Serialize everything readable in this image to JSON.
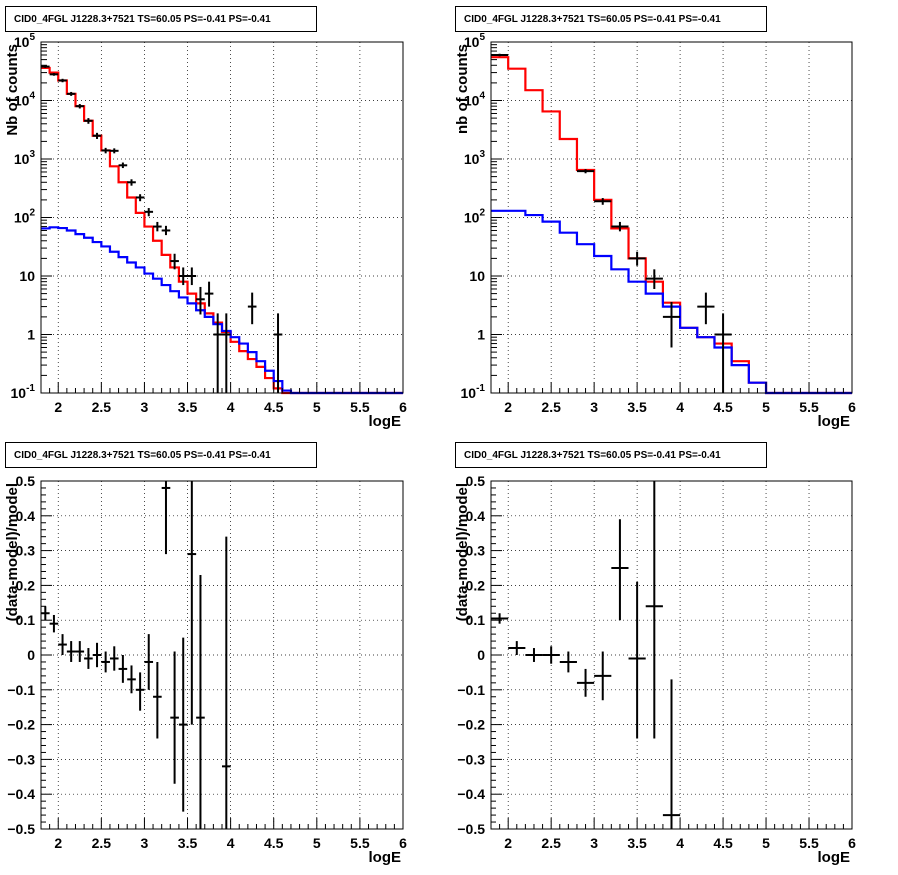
{
  "chart_data": [
    {
      "type": "line",
      "title": "CID0_4FGL J1228.3+7521 TS=60.05 PS=-0.41 PS=-0.41",
      "xlabel": "logE",
      "ylabel": "Nb of counts",
      "xlim": [
        1.8,
        6
      ],
      "ylim": [
        0.1,
        100000
      ],
      "yscale": "log",
      "grid": true,
      "xticks": [
        "2",
        "2.5",
        "3",
        "3.5",
        "4",
        "4.5",
        "5",
        "5.5",
        "6"
      ],
      "yticks": [
        "10^-1",
        "1",
        "10",
        "10^2",
        "10^3",
        "10^4",
        "10^5"
      ],
      "series": [
        {
          "color": "#ff0000",
          "style": "step",
          "bin_edges": [
            1.8,
            1.9,
            2.0,
            2.1,
            2.2,
            2.3,
            2.4,
            2.5,
            2.6,
            2.7,
            2.8,
            2.9,
            3.0,
            3.1,
            3.2,
            3.3,
            3.4,
            3.5,
            3.6,
            3.7,
            3.8,
            3.9,
            4.0,
            4.1,
            4.2,
            4.3,
            4.4,
            4.5,
            4.6,
            4.7,
            4.8,
            4.9,
            5.0,
            5.1,
            5.2,
            5.3,
            5.4,
            5.5,
            5.6,
            5.7,
            5.8,
            5.9,
            6.0
          ],
          "values": [
            36000,
            30000,
            22000,
            13000,
            8000,
            4500,
            2500,
            1400,
            750,
            400,
            220,
            120,
            70,
            40,
            23,
            14,
            8,
            5,
            3.4,
            2.3,
            1.6,
            1.1,
            0.75,
            0.52,
            0.38,
            0.28,
            0.18,
            0.12,
            0.1,
            0.1,
            0.1,
            0.1,
            0.1,
            0.1,
            0.1,
            0.1,
            0.1,
            0.1,
            0.1,
            0.1,
            0.1,
            0.1
          ]
        },
        {
          "color": "#0000ff",
          "style": "step",
          "bin_edges": [
            1.8,
            1.9,
            2.0,
            2.1,
            2.2,
            2.3,
            2.4,
            2.5,
            2.6,
            2.7,
            2.8,
            2.9,
            3.0,
            3.1,
            3.2,
            3.3,
            3.4,
            3.5,
            3.6,
            3.7,
            3.8,
            3.9,
            4.0,
            4.1,
            4.2,
            4.3,
            4.4,
            4.5,
            4.6,
            4.7,
            4.8,
            4.9,
            5.0,
            5.1,
            5.2,
            5.3,
            5.4,
            5.5,
            5.6,
            5.7,
            5.8,
            5.9,
            6.0
          ],
          "values": [
            65,
            68,
            66,
            60,
            52,
            45,
            38,
            32,
            26,
            21,
            17,
            14,
            11,
            9,
            7,
            5.5,
            4.3,
            3.4,
            2.6,
            2.0,
            1.5,
            1.15,
            0.9,
            0.7,
            0.5,
            0.35,
            0.24,
            0.16,
            0.11,
            0.1,
            0.1,
            0.1,
            0.1,
            0.1,
            0.1,
            0.1,
            0.1,
            0.1,
            0.1,
            0.1,
            0.1,
            0.1
          ]
        },
        {
          "color": "#000000",
          "style": "errorbar",
          "points": [
            {
              "x": 1.85,
              "y": 38000,
              "xerr": 0.05,
              "ylo": 36000,
              "yhi": 40000
            },
            {
              "x": 1.95,
              "y": 28000,
              "xerr": 0.05,
              "ylo": 26500,
              "yhi": 29500
            },
            {
              "x": 2.05,
              "y": 22000,
              "xerr": 0.05,
              "ylo": 20500,
              "yhi": 23500
            },
            {
              "x": 2.15,
              "y": 13000,
              "xerr": 0.05,
              "ylo": 12000,
              "yhi": 14000
            },
            {
              "x": 2.25,
              "y": 8000,
              "xerr": 0.05,
              "ylo": 7300,
              "yhi": 8700
            },
            {
              "x": 2.35,
              "y": 4500,
              "xerr": 0.05,
              "ylo": 4000,
              "yhi": 5000
            },
            {
              "x": 2.45,
              "y": 2500,
              "xerr": 0.05,
              "ylo": 2200,
              "yhi": 2800
            },
            {
              "x": 2.55,
              "y": 1400,
              "xerr": 0.05,
              "ylo": 1250,
              "yhi": 1550
            },
            {
              "x": 2.65,
              "y": 1380,
              "xerr": 0.05,
              "ylo": 1250,
              "yhi": 1520
            },
            {
              "x": 2.75,
              "y": 780,
              "xerr": 0.05,
              "ylo": 700,
              "yhi": 870
            },
            {
              "x": 2.85,
              "y": 400,
              "xerr": 0.05,
              "ylo": 350,
              "yhi": 450
            },
            {
              "x": 2.95,
              "y": 220,
              "xerr": 0.05,
              "ylo": 190,
              "yhi": 250
            },
            {
              "x": 3.05,
              "y": 125,
              "xerr": 0.05,
              "ylo": 105,
              "yhi": 145
            },
            {
              "x": 3.15,
              "y": 70,
              "xerr": 0.05,
              "ylo": 58,
              "yhi": 84
            },
            {
              "x": 3.25,
              "y": 60,
              "xerr": 0.05,
              "ylo": 50,
              "yhi": 72
            },
            {
              "x": 3.35,
              "y": 18,
              "xerr": 0.05,
              "ylo": 13,
              "yhi": 24
            },
            {
              "x": 3.45,
              "y": 10,
              "xerr": 0.05,
              "ylo": 7,
              "yhi": 14
            },
            {
              "x": 3.55,
              "y": 10,
              "xerr": 0.05,
              "ylo": 7,
              "yhi": 14
            },
            {
              "x": 3.65,
              "y": 4,
              "xerr": 0.05,
              "ylo": 2.2,
              "yhi": 6.5
            },
            {
              "x": 3.75,
              "y": 5,
              "xerr": 0.05,
              "ylo": 3,
              "yhi": 8
            },
            {
              "x": 3.85,
              "y": 1,
              "xerr": 0.05,
              "ylo": 0.1,
              "yhi": 2.3
            },
            {
              "x": 3.95,
              "y": 1,
              "xerr": 0.05,
              "ylo": 0.1,
              "yhi": 2.3
            },
            {
              "x": 4.25,
              "y": 3,
              "xerr": 0.05,
              "ylo": 1.5,
              "yhi": 5.2
            },
            {
              "x": 4.55,
              "y": 1,
              "xerr": 0.05,
              "ylo": 0.1,
              "yhi": 2.3
            }
          ]
        }
      ]
    },
    {
      "type": "line",
      "title": "CID0_4FGL J1228.3+7521 TS=60.05 PS=-0.41 PS=-0.41",
      "xlabel": "logE",
      "ylabel": "nb of counts",
      "xlim": [
        1.8,
        6
      ],
      "ylim": [
        0.1,
        100000
      ],
      "yscale": "log",
      "grid": true,
      "xticks": [
        "2",
        "2.5",
        "3",
        "3.5",
        "4",
        "4.5",
        "5",
        "5.5",
        "6"
      ],
      "yticks": [
        "10^-1",
        "1",
        "10",
        "10^2",
        "10^3",
        "10^4",
        "10^5"
      ],
      "series": [
        {
          "color": "#ff0000",
          "style": "step",
          "bin_edges": [
            1.8,
            2.0,
            2.2,
            2.4,
            2.6,
            2.8,
            3.0,
            3.2,
            3.4,
            3.6,
            3.8,
            4.0,
            4.2,
            4.4,
            4.6,
            4.8,
            5.0,
            5.2,
            5.4,
            5.6,
            5.8,
            6.0
          ],
          "values": [
            55000,
            35000,
            15000,
            6500,
            2200,
            650,
            200,
            65,
            20,
            8,
            3.5,
            1.3,
            0.9,
            0.7,
            0.35,
            0.15,
            0.1,
            0.1,
            0.1,
            0.1,
            0.1
          ]
        },
        {
          "color": "#0000ff",
          "style": "step",
          "bin_edges": [
            1.8,
            2.0,
            2.2,
            2.4,
            2.6,
            2.8,
            3.0,
            3.2,
            3.4,
            3.6,
            3.8,
            4.0,
            4.2,
            4.4,
            4.6,
            4.8,
            5.0,
            5.2,
            5.4,
            5.6,
            5.8,
            6.0
          ],
          "values": [
            130,
            130,
            110,
            85,
            55,
            35,
            22,
            13,
            8,
            5,
            3,
            1.3,
            0.9,
            0.6,
            0.3,
            0.15,
            0.1,
            0.1,
            0.1,
            0.1,
            0.1
          ]
        },
        {
          "color": "#000000",
          "style": "errorbar",
          "points": [
            {
              "x": 1.9,
              "y": 60000,
              "xerr": 0.1,
              "ylo": 57000,
              "yhi": 63000
            },
            {
              "x": 2.9,
              "y": 620,
              "xerr": 0.1,
              "ylo": 570,
              "yhi": 670
            },
            {
              "x": 3.1,
              "y": 190,
              "xerr": 0.1,
              "ylo": 165,
              "yhi": 215
            },
            {
              "x": 3.3,
              "y": 70,
              "xerr": 0.1,
              "ylo": 58,
              "yhi": 84
            },
            {
              "x": 3.5,
              "y": 20,
              "xerr": 0.1,
              "ylo": 15,
              "yhi": 26
            },
            {
              "x": 3.7,
              "y": 9,
              "xerr": 0.1,
              "ylo": 6,
              "yhi": 13
            },
            {
              "x": 3.9,
              "y": 2,
              "xerr": 0.1,
              "ylo": 0.6,
              "yhi": 3.6
            },
            {
              "x": 4.3,
              "y": 3,
              "xerr": 0.1,
              "ylo": 1.5,
              "yhi": 5.2
            },
            {
              "x": 4.5,
              "y": 1,
              "xerr": 0.1,
              "ylo": 0.1,
              "yhi": 2.3
            }
          ]
        }
      ]
    },
    {
      "type": "scatter",
      "title": "CID0_4FGL J1228.3+7521 TS=60.05 PS=-0.41 PS=-0.41",
      "xlabel": "logE",
      "ylabel": "(data-model)/model",
      "xlim": [
        1.8,
        6
      ],
      "ylim": [
        -0.5,
        0.5
      ],
      "grid": true,
      "xticks": [
        "2",
        "2.5",
        "3",
        "3.5",
        "4",
        "4.5",
        "5",
        "5.5",
        "6"
      ],
      "yticks": [
        "-0.5",
        "-0.4",
        "-0.3",
        "-0.2",
        "-0.1",
        "0",
        "0.1",
        "0.2",
        "0.3",
        "0.4",
        "0.5"
      ],
      "series": [
        {
          "color": "#000000",
          "style": "errorbar",
          "points": [
            {
              "x": 1.85,
              "y": 0.12,
              "xerr": 0.05,
              "ylo": 0.1,
              "yhi": 0.14
            },
            {
              "x": 1.95,
              "y": 0.09,
              "xerr": 0.05,
              "ylo": 0.065,
              "yhi": 0.115
            },
            {
              "x": 2.05,
              "y": 0.03,
              "xerr": 0.05,
              "ylo": 0.0,
              "yhi": 0.06
            },
            {
              "x": 2.15,
              "y": 0.01,
              "xerr": 0.05,
              "ylo": -0.02,
              "yhi": 0.04
            },
            {
              "x": 2.25,
              "y": 0.01,
              "xerr": 0.05,
              "ylo": -0.02,
              "yhi": 0.04
            },
            {
              "x": 2.35,
              "y": -0.01,
              "xerr": 0.05,
              "ylo": -0.04,
              "yhi": 0.02
            },
            {
              "x": 2.45,
              "y": 0.0,
              "xerr": 0.05,
              "ylo": -0.035,
              "yhi": 0.035
            },
            {
              "x": 2.55,
              "y": -0.02,
              "xerr": 0.05,
              "ylo": -0.05,
              "yhi": 0.01
            },
            {
              "x": 2.65,
              "y": -0.01,
              "xerr": 0.05,
              "ylo": -0.045,
              "yhi": 0.025
            },
            {
              "x": 2.75,
              "y": -0.04,
              "xerr": 0.05,
              "ylo": -0.08,
              "yhi": 0.0
            },
            {
              "x": 2.85,
              "y": -0.07,
              "xerr": 0.05,
              "ylo": -0.11,
              "yhi": -0.03
            },
            {
              "x": 2.95,
              "y": -0.1,
              "xerr": 0.05,
              "ylo": -0.16,
              "yhi": -0.05
            },
            {
              "x": 3.05,
              "y": -0.02,
              "xerr": 0.05,
              "ylo": -0.1,
              "yhi": 0.06
            },
            {
              "x": 3.15,
              "y": -0.12,
              "xerr": 0.05,
              "ylo": -0.24,
              "yhi": -0.02
            },
            {
              "x": 3.25,
              "y": 0.48,
              "xerr": 0.05,
              "ylo": 0.29,
              "yhi": 0.5
            },
            {
              "x": 3.35,
              "y": -0.18,
              "xerr": 0.05,
              "ylo": -0.37,
              "yhi": 0.01
            },
            {
              "x": 3.45,
              "y": -0.2,
              "xerr": 0.05,
              "ylo": -0.45,
              "yhi": 0.05
            },
            {
              "x": 3.55,
              "y": 0.29,
              "xerr": 0.05,
              "ylo": -0.2,
              "yhi": 0.5
            },
            {
              "x": 3.65,
              "y": -0.18,
              "xerr": 0.05,
              "ylo": -0.5,
              "yhi": 0.23
            },
            {
              "x": 3.95,
              "y": -0.32,
              "xerr": 0.05,
              "ylo": -0.5,
              "yhi": 0.34
            }
          ]
        }
      ]
    },
    {
      "type": "scatter",
      "title": "CID0_4FGL J1228.3+7521 TS=60.05 PS=-0.41 PS=-0.41",
      "xlabel": "logE",
      "ylabel": "(data-model)/model",
      "xlim": [
        1.8,
        6
      ],
      "ylim": [
        -0.5,
        0.5
      ],
      "grid": true,
      "xticks": [
        "2",
        "2.5",
        "3",
        "3.5",
        "4",
        "4.5",
        "5",
        "5.5",
        "6"
      ],
      "yticks": [
        "-0.5",
        "-0.4",
        "-0.3",
        "-0.2",
        "-0.1",
        "0",
        "0.1",
        "0.2",
        "0.3",
        "0.4",
        "0.5"
      ],
      "series": [
        {
          "color": "#000000",
          "style": "errorbar",
          "points": [
            {
              "x": 1.9,
              "y": 0.105,
              "xerr": 0.1,
              "ylo": 0.09,
              "yhi": 0.12
            },
            {
              "x": 2.1,
              "y": 0.02,
              "xerr": 0.1,
              "ylo": 0.0,
              "yhi": 0.04
            },
            {
              "x": 2.3,
              "y": 0.0,
              "xerr": 0.1,
              "ylo": -0.02,
              "yhi": 0.02
            },
            {
              "x": 2.5,
              "y": 0.0,
              "xerr": 0.1,
              "ylo": -0.025,
              "yhi": 0.025
            },
            {
              "x": 2.7,
              "y": -0.02,
              "xerr": 0.1,
              "ylo": -0.05,
              "yhi": 0.01
            },
            {
              "x": 2.9,
              "y": -0.08,
              "xerr": 0.1,
              "ylo": -0.12,
              "yhi": -0.04
            },
            {
              "x": 3.1,
              "y": -0.06,
              "xerr": 0.1,
              "ylo": -0.13,
              "yhi": 0.01
            },
            {
              "x": 3.3,
              "y": 0.25,
              "xerr": 0.1,
              "ylo": 0.1,
              "yhi": 0.39
            },
            {
              "x": 3.5,
              "y": -0.01,
              "xerr": 0.1,
              "ylo": -0.24,
              "yhi": 0.21
            },
            {
              "x": 3.7,
              "y": 0.14,
              "xerr": 0.1,
              "ylo": -0.24,
              "yhi": 0.5
            },
            {
              "x": 3.9,
              "y": -0.46,
              "xerr": 0.1,
              "ylo": -0.5,
              "yhi": -0.07
            }
          ]
        }
      ]
    }
  ]
}
